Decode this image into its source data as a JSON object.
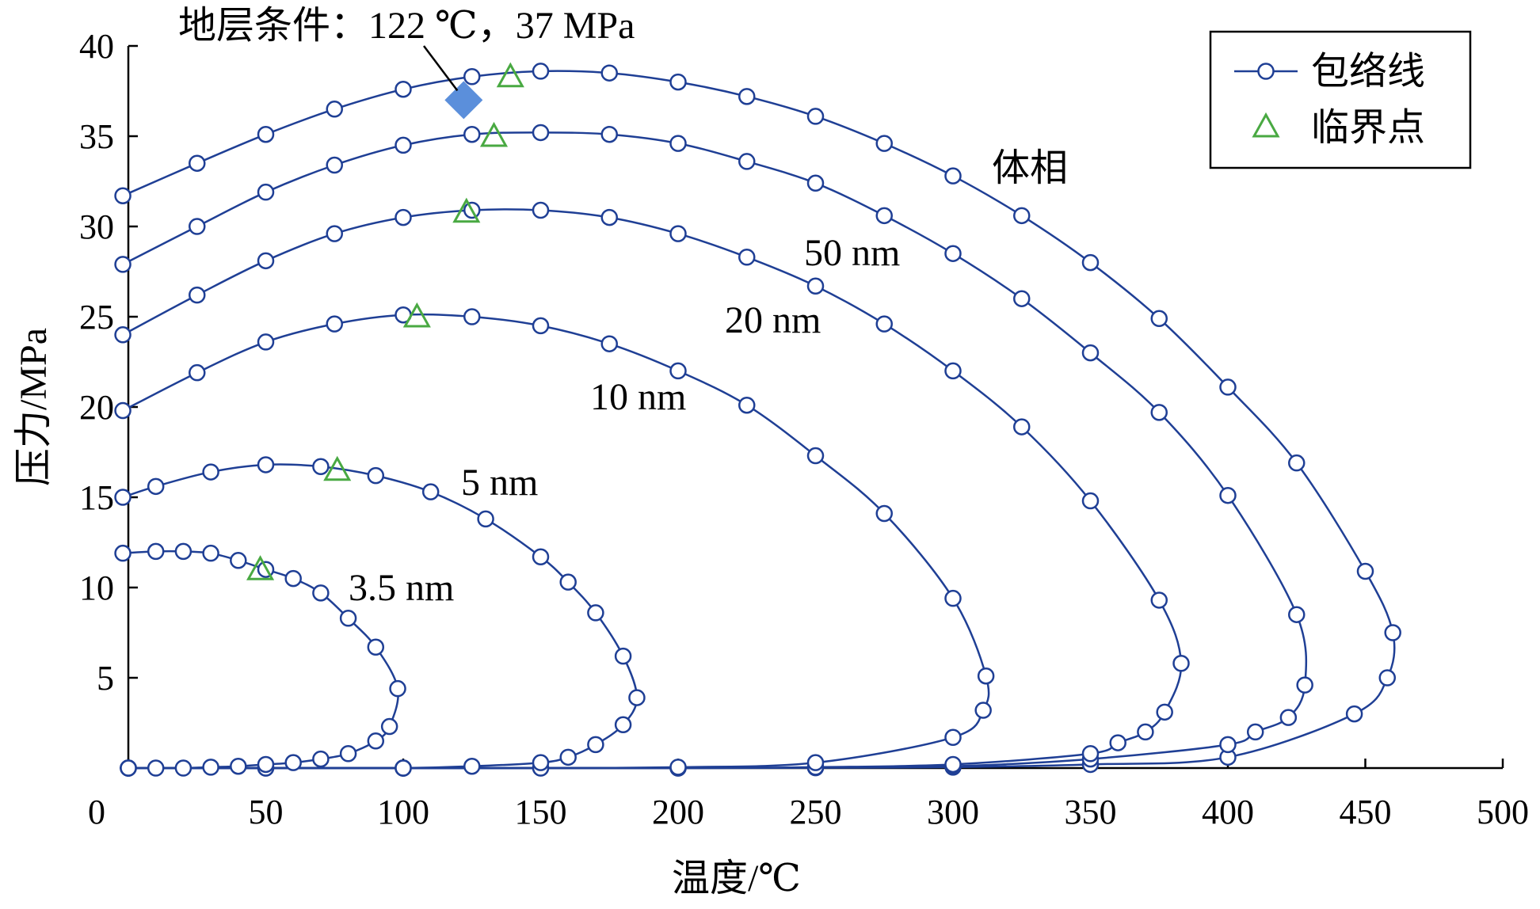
{
  "colors": {
    "curve": "#1f3f95",
    "critical": "#49a942",
    "condition": "#5b8fdb",
    "axis": "#000000"
  },
  "chart_data": {
    "type": "line",
    "xlabel": "温度/℃",
    "ylabel": "压力/MPa",
    "xlim": [
      0,
      500
    ],
    "ylim": [
      0,
      40
    ],
    "xticks": [
      "0",
      "50",
      "100",
      "150",
      "200",
      "250",
      "300",
      "350",
      "400",
      "450",
      "500"
    ],
    "yticks": [
      "5",
      "10",
      "15",
      "20",
      "25",
      "30",
      "35",
      "40"
    ],
    "legend": {
      "position": "top-right",
      "envelope": "包络线",
      "critical": "临界点"
    },
    "reservoir_condition": {
      "label": "地层条件：122 ℃，37 MPa",
      "x": 122,
      "y": 37
    },
    "series": [
      {
        "label": "体相",
        "envelope": [
          [
            -2,
            31.7
          ],
          [
            25,
            33.5
          ],
          [
            50,
            35.1
          ],
          [
            75,
            36.5
          ],
          [
            100,
            37.6
          ],
          [
            125,
            38.3
          ],
          [
            150,
            38.6
          ],
          [
            175,
            38.5
          ],
          [
            200,
            38.0
          ],
          [
            225,
            37.2
          ],
          [
            250,
            36.1
          ],
          [
            275,
            34.6
          ],
          [
            300,
            32.8
          ],
          [
            325,
            30.6
          ],
          [
            350,
            28.0
          ],
          [
            375,
            24.9
          ],
          [
            400,
            21.1
          ],
          [
            425,
            16.9
          ],
          [
            450,
            10.9
          ],
          [
            460,
            7.5
          ],
          [
            458,
            5.0
          ],
          [
            446,
            3.0
          ],
          [
            400,
            0.6
          ],
          [
            350,
            0.2
          ],
          [
            300,
            0.05
          ],
          [
            250,
            0.02
          ],
          [
            200,
            0.01
          ],
          [
            150,
            0.005
          ],
          [
            100,
            0
          ],
          [
            50,
            0
          ],
          [
            0,
            0
          ]
        ],
        "critical": [
          139,
          38.3
        ]
      },
      {
        "label": "50 nm",
        "envelope": [
          [
            -2,
            27.9
          ],
          [
            25,
            30.0
          ],
          [
            50,
            31.9
          ],
          [
            75,
            33.4
          ],
          [
            100,
            34.5
          ],
          [
            125,
            35.1
          ],
          [
            150,
            35.2
          ],
          [
            175,
            35.1
          ],
          [
            200,
            34.6
          ],
          [
            225,
            33.6
          ],
          [
            250,
            32.4
          ],
          [
            275,
            30.6
          ],
          [
            300,
            28.5
          ],
          [
            325,
            26.0
          ],
          [
            350,
            23.0
          ],
          [
            375,
            19.7
          ],
          [
            400,
            15.1
          ],
          [
            425,
            8.5
          ],
          [
            428,
            4.6
          ],
          [
            422,
            2.8
          ],
          [
            410,
            2.0
          ],
          [
            400,
            1.3
          ],
          [
            350,
            0.5
          ],
          [
            300,
            0.1
          ],
          [
            250,
            0.02
          ],
          [
            200,
            0
          ],
          [
            100,
            0
          ],
          [
            0,
            0
          ]
        ],
        "critical": [
          133,
          35.0
        ]
      },
      {
        "label": "20 nm",
        "envelope": [
          [
            -2,
            24.0
          ],
          [
            25,
            26.2
          ],
          [
            50,
            28.1
          ],
          [
            75,
            29.6
          ],
          [
            100,
            30.5
          ],
          [
            125,
            30.9
          ],
          [
            150,
            30.9
          ],
          [
            175,
            30.5
          ],
          [
            200,
            29.6
          ],
          [
            225,
            28.3
          ],
          [
            250,
            26.7
          ],
          [
            275,
            24.6
          ],
          [
            300,
            22.0
          ],
          [
            325,
            18.9
          ],
          [
            350,
            14.8
          ],
          [
            375,
            9.3
          ],
          [
            383,
            5.8
          ],
          [
            377,
            3.1
          ],
          [
            370,
            2.0
          ],
          [
            360,
            1.4
          ],
          [
            350,
            0.8
          ],
          [
            300,
            0.2
          ],
          [
            250,
            0.05
          ],
          [
            200,
            0
          ],
          [
            100,
            0
          ],
          [
            0,
            0
          ]
        ],
        "critical": [
          123,
          30.8
        ]
      },
      {
        "label": "10 nm",
        "envelope": [
          [
            -2,
            19.8
          ],
          [
            25,
            21.9
          ],
          [
            50,
            23.6
          ],
          [
            75,
            24.6
          ],
          [
            100,
            25.1
          ],
          [
            125,
            25.0
          ],
          [
            150,
            24.5
          ],
          [
            175,
            23.5
          ],
          [
            200,
            22.0
          ],
          [
            225,
            20.1
          ],
          [
            250,
            17.3
          ],
          [
            275,
            14.1
          ],
          [
            300,
            9.4
          ],
          [
            312,
            5.1
          ],
          [
            311,
            3.2
          ],
          [
            300,
            1.7
          ],
          [
            250,
            0.3
          ],
          [
            200,
            0.05
          ],
          [
            150,
            0
          ],
          [
            100,
            0
          ],
          [
            0,
            0
          ]
        ],
        "critical": [
          105,
          25.0
        ]
      },
      {
        "label": "5 nm",
        "envelope": [
          [
            -2,
            15.0
          ],
          [
            10,
            15.6
          ],
          [
            30,
            16.4
          ],
          [
            50,
            16.8
          ],
          [
            70,
            16.7
          ],
          [
            90,
            16.2
          ],
          [
            110,
            15.3
          ],
          [
            130,
            13.8
          ],
          [
            150,
            11.7
          ],
          [
            160,
            10.3
          ],
          [
            170,
            8.6
          ],
          [
            180,
            6.2
          ],
          [
            185,
            3.9
          ],
          [
            180,
            2.4
          ],
          [
            170,
            1.3
          ],
          [
            160,
            0.6
          ],
          [
            150,
            0.3
          ],
          [
            125,
            0.1
          ],
          [
            100,
            0
          ],
          [
            50,
            0
          ],
          [
            0,
            0
          ]
        ],
        "critical": [
          76,
          16.5
        ]
      },
      {
        "label": "3.5 nm",
        "envelope": [
          [
            -2,
            11.9
          ],
          [
            10,
            12.0
          ],
          [
            20,
            12.0
          ],
          [
            30,
            11.9
          ],
          [
            40,
            11.5
          ],
          [
            50,
            11.0
          ],
          [
            60,
            10.5
          ],
          [
            70,
            9.7
          ],
          [
            80,
            8.3
          ],
          [
            90,
            6.7
          ],
          [
            98,
            4.4
          ],
          [
            95,
            2.3
          ],
          [
            90,
            1.5
          ],
          [
            80,
            0.8
          ],
          [
            70,
            0.5
          ],
          [
            60,
            0.3
          ],
          [
            50,
            0.2
          ],
          [
            40,
            0.1
          ],
          [
            30,
            0.05
          ],
          [
            20,
            0
          ],
          [
            10,
            0
          ],
          [
            0,
            0
          ]
        ],
        "critical": [
          48,
          11.0
        ]
      }
    ]
  }
}
